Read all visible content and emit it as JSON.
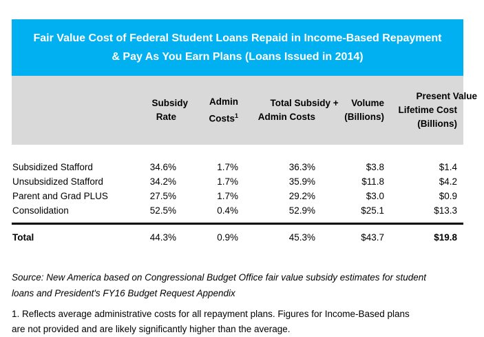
{
  "title": {
    "text": "Fair Value Cost of Federal Student Loans Repaid in Income-Based Repayment\n& Pay As You Earn Plans (Loans Issued in 2014)"
  },
  "colors": {
    "title_bg": "#00B0F0",
    "header_bg": "#D9D9D9",
    "text": "#000000"
  },
  "table": {
    "columns": [
      {
        "label": ""
      },
      {
        "label": "Subsidy\nRate"
      },
      {
        "label": "Admin\nCosts",
        "superscript": "1"
      },
      {
        "label": "Total Subsidy +\nAdmin Costs"
      },
      {
        "label": "Volume\n(Billions)"
      },
      {
        "label": "Present Value\nLifetime Cost\n(Billions)"
      }
    ],
    "rows": [
      {
        "label": "Subsidized Stafford",
        "values": [
          "34.6%",
          "1.7%",
          "36.3%",
          "$3.8",
          "$1.4"
        ]
      },
      {
        "label": "Unsubsidized Stafford",
        "values": [
          "34.2%",
          "1.7%",
          "35.9%",
          "$11.8",
          "$4.2"
        ]
      },
      {
        "label": "Parent and Grad PLUS",
        "values": [
          "27.5%",
          "1.7%",
          "29.2%",
          "$3.0",
          "$0.9"
        ]
      },
      {
        "label": "Consolidation",
        "values": [
          "52.5%",
          "0.4%",
          "52.9%",
          "$25.1",
          "$13.3"
        ]
      }
    ],
    "total_row": {
      "label": "Total",
      "values": [
        "44.3%",
        "0.9%",
        "45.3%",
        "$43.7",
        "$19.8"
      ]
    }
  },
  "notes": {
    "source": "Source: New America based on Congressional Budget Office fair value subsidy estimates for student\nloans and President's FY16 Budget Request Appendix",
    "footnote": "1. Reflects average administrative costs for all repayment plans. Figures for Income-Based plans\nare not provided and are likely significantly higher than the average."
  },
  "chart_data": {
    "type": "table",
    "title": "Fair Value Cost of Federal Student Loans Repaid in Income-Based Repayment & Pay As You Earn Plans (Loans Issued in 2014)",
    "columns": [
      "Subsidy Rate",
      "Admin Costs",
      "Total Subsidy + Admin Costs",
      "Volume (Billions)",
      "Present Value Lifetime Cost (Billions)"
    ],
    "rows": [
      [
        "Subsidized Stafford",
        "34.6%",
        "1.7%",
        "36.3%",
        "$3.8",
        "$1.4"
      ],
      [
        "Unsubsidized Stafford",
        "34.2%",
        "1.7%",
        "35.9%",
        "$11.8",
        "$4.2"
      ],
      [
        "Parent and Grad PLUS",
        "27.5%",
        "1.7%",
        "29.2%",
        "$3.0",
        "$0.9"
      ],
      [
        "Consolidation",
        "52.5%",
        "0.4%",
        "52.9%",
        "$25.1",
        "$13.3"
      ],
      [
        "Total",
        "44.3%",
        "0.9%",
        "45.3%",
        "$43.7",
        "$19.8"
      ]
    ]
  }
}
